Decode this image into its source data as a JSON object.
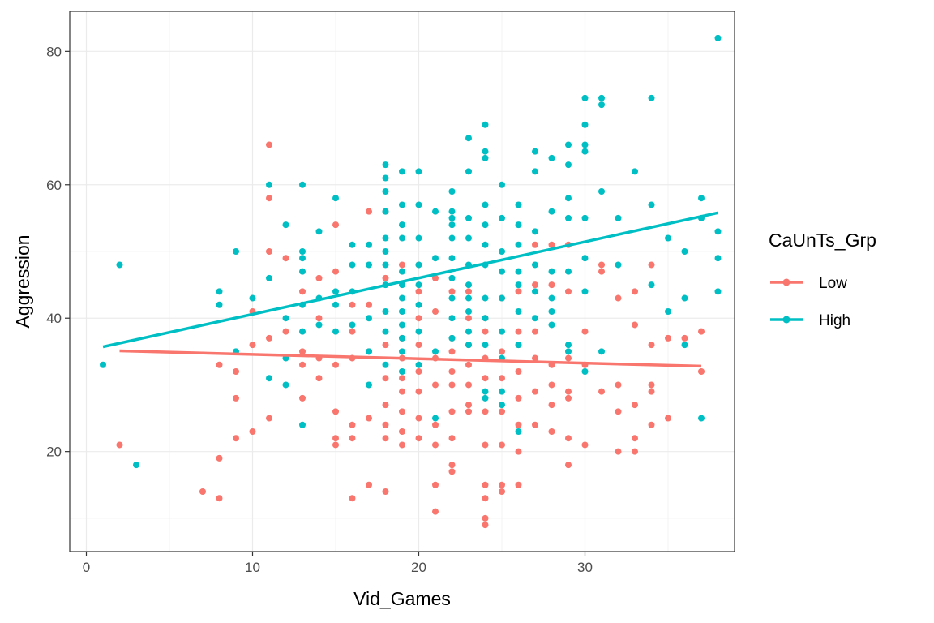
{
  "chart_data": {
    "type": "scatter",
    "xlabel": "Vid_Games",
    "ylabel": "Aggression",
    "xlim": [
      -1,
      39
    ],
    "ylim": [
      5,
      86
    ],
    "x_ticks": [
      0,
      10,
      20,
      30
    ],
    "y_ticks": [
      20,
      40,
      60,
      80
    ],
    "grid": true,
    "legend": {
      "title": "CaUnTs_Grp",
      "position": "right"
    },
    "series": [
      {
        "name": "Low",
        "color": "#F8766D",
        "points": [
          [
            2,
            21
          ],
          [
            7,
            14
          ],
          [
            8,
            13
          ],
          [
            8,
            19
          ],
          [
            8,
            33
          ],
          [
            9,
            22
          ],
          [
            9,
            28
          ],
          [
            9,
            32
          ],
          [
            10,
            23
          ],
          [
            10,
            36
          ],
          [
            10,
            41
          ],
          [
            11,
            25
          ],
          [
            11,
            37
          ],
          [
            11,
            50
          ],
          [
            11,
            58
          ],
          [
            11,
            66
          ],
          [
            12,
            38
          ],
          [
            12,
            49
          ],
          [
            13,
            28
          ],
          [
            13,
            33
          ],
          [
            13,
            35
          ],
          [
            13,
            44
          ],
          [
            14,
            31
          ],
          [
            14,
            34
          ],
          [
            14,
            40
          ],
          [
            14,
            46
          ],
          [
            15,
            21
          ],
          [
            15,
            22
          ],
          [
            15,
            26
          ],
          [
            15,
            33
          ],
          [
            15,
            47
          ],
          [
            15,
            54
          ],
          [
            16,
            13
          ],
          [
            16,
            22
          ],
          [
            16,
            24
          ],
          [
            16,
            34
          ],
          [
            16,
            38
          ],
          [
            16,
            42
          ],
          [
            17,
            15
          ],
          [
            17,
            25
          ],
          [
            17,
            35
          ],
          [
            17,
            42
          ],
          [
            17,
            56
          ],
          [
            18,
            14
          ],
          [
            18,
            22
          ],
          [
            18,
            24
          ],
          [
            18,
            27
          ],
          [
            18,
            31
          ],
          [
            18,
            36
          ],
          [
            18,
            46
          ],
          [
            18,
            56
          ],
          [
            19,
            21
          ],
          [
            19,
            23
          ],
          [
            19,
            26
          ],
          [
            19,
            29
          ],
          [
            19,
            31
          ],
          [
            19,
            34
          ],
          [
            19,
            37
          ],
          [
            19,
            48
          ],
          [
            20,
            22
          ],
          [
            20,
            25
          ],
          [
            20,
            29
          ],
          [
            20,
            32
          ],
          [
            20,
            36
          ],
          [
            20,
            40
          ],
          [
            20,
            44
          ],
          [
            20,
            48
          ],
          [
            21,
            11
          ],
          [
            21,
            15
          ],
          [
            21,
            21
          ],
          [
            21,
            24
          ],
          [
            21,
            30
          ],
          [
            21,
            34
          ],
          [
            21,
            41
          ],
          [
            21,
            46
          ],
          [
            22,
            17
          ],
          [
            22,
            18
          ],
          [
            22,
            22
          ],
          [
            22,
            26
          ],
          [
            22,
            30
          ],
          [
            22,
            32
          ],
          [
            22,
            35
          ],
          [
            22,
            37
          ],
          [
            22,
            44
          ],
          [
            23,
            26
          ],
          [
            23,
            27
          ],
          [
            23,
            30
          ],
          [
            23,
            33
          ],
          [
            23,
            36
          ],
          [
            23,
            40
          ],
          [
            23,
            44
          ],
          [
            24,
            9
          ],
          [
            24,
            10
          ],
          [
            24,
            13
          ],
          [
            24,
            15
          ],
          [
            24,
            21
          ],
          [
            24,
            26
          ],
          [
            24,
            31
          ],
          [
            24,
            34
          ],
          [
            24,
            38
          ],
          [
            24,
            40
          ],
          [
            25,
            14
          ],
          [
            25,
            15
          ],
          [
            25,
            21
          ],
          [
            25,
            26
          ],
          [
            25,
            31
          ],
          [
            25,
            35
          ],
          [
            25,
            43
          ],
          [
            26,
            15
          ],
          [
            26,
            20
          ],
          [
            26,
            24
          ],
          [
            26,
            28
          ],
          [
            26,
            32
          ],
          [
            26,
            36
          ],
          [
            26,
            38
          ],
          [
            26,
            44
          ],
          [
            27,
            24
          ],
          [
            27,
            29
          ],
          [
            27,
            34
          ],
          [
            27,
            38
          ],
          [
            27,
            45
          ],
          [
            27,
            51
          ],
          [
            28,
            23
          ],
          [
            28,
            27
          ],
          [
            28,
            30
          ],
          [
            28,
            33
          ],
          [
            28,
            45
          ],
          [
            28,
            51
          ],
          [
            29,
            18
          ],
          [
            29,
            22
          ],
          [
            29,
            28
          ],
          [
            29,
            29
          ],
          [
            29,
            34
          ],
          [
            29,
            44
          ],
          [
            29,
            51
          ],
          [
            30,
            21
          ],
          [
            30,
            33
          ],
          [
            30,
            38
          ],
          [
            31,
            29
          ],
          [
            31,
            47
          ],
          [
            31,
            48
          ],
          [
            32,
            20
          ],
          [
            32,
            26
          ],
          [
            32,
            30
          ],
          [
            32,
            43
          ],
          [
            33,
            20
          ],
          [
            33,
            22
          ],
          [
            33,
            27
          ],
          [
            33,
            39
          ],
          [
            33,
            44
          ],
          [
            34,
            24
          ],
          [
            34,
            29
          ],
          [
            34,
            30
          ],
          [
            34,
            36
          ],
          [
            34,
            48
          ],
          [
            35,
            25
          ],
          [
            35,
            37
          ],
          [
            36,
            37
          ],
          [
            37,
            32
          ],
          [
            37,
            38
          ]
        ],
        "fit": {
          "x": [
            2,
            37
          ],
          "y": [
            35.1,
            32.8
          ]
        }
      },
      {
        "name": "High",
        "color": "#00BFC4",
        "points": [
          [
            1,
            33
          ],
          [
            2,
            48
          ],
          [
            3,
            18
          ],
          [
            8,
            42
          ],
          [
            8,
            44
          ],
          [
            9,
            35
          ],
          [
            9,
            50
          ],
          [
            10,
            43
          ],
          [
            11,
            31
          ],
          [
            11,
            46
          ],
          [
            11,
            60
          ],
          [
            12,
            30
          ],
          [
            12,
            34
          ],
          [
            12,
            40
          ],
          [
            12,
            54
          ],
          [
            13,
            24
          ],
          [
            13,
            38
          ],
          [
            13,
            42
          ],
          [
            13,
            47
          ],
          [
            13,
            49
          ],
          [
            13,
            50
          ],
          [
            13,
            60
          ],
          [
            14,
            39
          ],
          [
            14,
            43
          ],
          [
            14,
            53
          ],
          [
            15,
            38
          ],
          [
            15,
            42
          ],
          [
            15,
            44
          ],
          [
            15,
            58
          ],
          [
            16,
            39
          ],
          [
            16,
            44
          ],
          [
            16,
            48
          ],
          [
            16,
            51
          ],
          [
            17,
            30
          ],
          [
            17,
            35
          ],
          [
            17,
            40
          ],
          [
            17,
            48
          ],
          [
            17,
            51
          ],
          [
            18,
            33
          ],
          [
            18,
            38
          ],
          [
            18,
            41
          ],
          [
            18,
            45
          ],
          [
            18,
            48
          ],
          [
            18,
            50
          ],
          [
            18,
            52
          ],
          [
            18,
            56
          ],
          [
            18,
            59
          ],
          [
            18,
            61
          ],
          [
            18,
            63
          ],
          [
            19,
            32
          ],
          [
            19,
            35
          ],
          [
            19,
            37
          ],
          [
            19,
            39
          ],
          [
            19,
            41
          ],
          [
            19,
            43
          ],
          [
            19,
            45
          ],
          [
            19,
            47
          ],
          [
            19,
            52
          ],
          [
            19,
            54
          ],
          [
            19,
            57
          ],
          [
            19,
            62
          ],
          [
            20,
            33
          ],
          [
            20,
            38
          ],
          [
            20,
            42
          ],
          [
            20,
            45
          ],
          [
            20,
            48
          ],
          [
            20,
            52
          ],
          [
            20,
            57
          ],
          [
            20,
            62
          ],
          [
            21,
            25
          ],
          [
            21,
            35
          ],
          [
            21,
            49
          ],
          [
            21,
            56
          ],
          [
            22,
            37
          ],
          [
            22,
            40
          ],
          [
            22,
            43
          ],
          [
            22,
            46
          ],
          [
            22,
            49
          ],
          [
            22,
            52
          ],
          [
            22,
            54
          ],
          [
            22,
            55
          ],
          [
            22,
            56
          ],
          [
            22,
            59
          ],
          [
            23,
            36
          ],
          [
            23,
            38
          ],
          [
            23,
            41
          ],
          [
            23,
            43
          ],
          [
            23,
            45
          ],
          [
            23,
            48
          ],
          [
            23,
            52
          ],
          [
            23,
            55
          ],
          [
            23,
            62
          ],
          [
            23,
            67
          ],
          [
            24,
            28
          ],
          [
            24,
            29
          ],
          [
            24,
            36
          ],
          [
            24,
            40
          ],
          [
            24,
            43
          ],
          [
            24,
            48
          ],
          [
            24,
            51
          ],
          [
            24,
            54
          ],
          [
            24,
            57
          ],
          [
            24,
            64
          ],
          [
            24,
            65
          ],
          [
            24,
            69
          ],
          [
            25,
            27
          ],
          [
            25,
            29
          ],
          [
            25,
            34
          ],
          [
            25,
            38
          ],
          [
            25,
            43
          ],
          [
            25,
            47
          ],
          [
            25,
            50
          ],
          [
            25,
            55
          ],
          [
            25,
            60
          ],
          [
            26,
            23
          ],
          [
            26,
            36
          ],
          [
            26,
            41
          ],
          [
            26,
            45
          ],
          [
            26,
            47
          ],
          [
            26,
            51
          ],
          [
            26,
            54
          ],
          [
            26,
            57
          ],
          [
            27,
            40
          ],
          [
            27,
            44
          ],
          [
            27,
            48
          ],
          [
            27,
            53
          ],
          [
            27,
            62
          ],
          [
            27,
            65
          ],
          [
            28,
            39
          ],
          [
            28,
            41
          ],
          [
            28,
            43
          ],
          [
            28,
            47
          ],
          [
            28,
            56
          ],
          [
            28,
            64
          ],
          [
            29,
            35
          ],
          [
            29,
            36
          ],
          [
            29,
            47
          ],
          [
            29,
            55
          ],
          [
            29,
            58
          ],
          [
            29,
            63
          ],
          [
            29,
            66
          ],
          [
            30,
            32
          ],
          [
            30,
            44
          ],
          [
            30,
            49
          ],
          [
            30,
            55
          ],
          [
            30,
            65
          ],
          [
            30,
            66
          ],
          [
            30,
            69
          ],
          [
            30,
            73
          ],
          [
            31,
            35
          ],
          [
            31,
            59
          ],
          [
            31,
            72
          ],
          [
            31,
            73
          ],
          [
            32,
            48
          ],
          [
            32,
            55
          ],
          [
            33,
            62
          ],
          [
            34,
            45
          ],
          [
            34,
            57
          ],
          [
            34,
            73
          ],
          [
            35,
            41
          ],
          [
            35,
            52
          ],
          [
            36,
            36
          ],
          [
            36,
            43
          ],
          [
            36,
            50
          ],
          [
            37,
            25
          ],
          [
            37,
            55
          ],
          [
            37,
            58
          ],
          [
            38,
            44
          ],
          [
            38,
            49
          ],
          [
            38,
            53
          ],
          [
            38,
            82
          ]
        ],
        "fit": {
          "x": [
            1,
            38
          ],
          "y": [
            35.7,
            55.8
          ]
        }
      }
    ]
  }
}
